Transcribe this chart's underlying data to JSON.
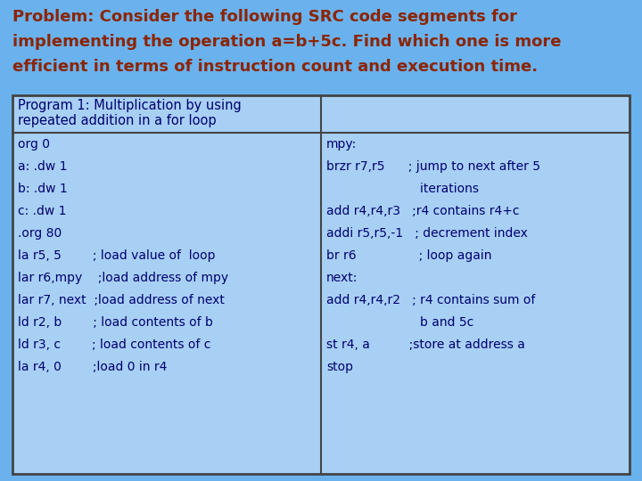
{
  "title_lines": [
    "Problem: Consider the following SRC code segments for",
    "implementing the operation a=b+5c. Find which one is more",
    "efficient in terms of instruction count and execution time."
  ],
  "title_color": "#8B2500",
  "title_bg": "#6AB2EE",
  "table_bg": "#A8D0F5",
  "table_border": "#444444",
  "header_text_line1": "Program 1: Multiplication by using",
  "header_text_line2": "repeated addition in a for loop",
  "header_text_color": "#000070",
  "left_col_lines": [
    "org 0",
    "a: .dw 1",
    "b: .dw 1",
    "c: .dw 1",
    ".org 80",
    "la r5, 5        ; load value of  loop",
    "lar r6,mpy    ;load address of mpy",
    "lar r7, next  ;load address of next",
    "ld r2, b        ; load contents of b",
    "ld r3, c        ; load contents of c",
    "la r4, 0        ;load 0 in r4"
  ],
  "right_col_lines": [
    "mpy:",
    "brzr r7,r5      ; jump to next after 5",
    "                        iterations",
    "add r4,r4,r3   ;r4 contains r4+c",
    "addi r5,r5,-1   ; decrement index",
    "br r6                ; loop again",
    "next:",
    "add r4,r4,r2   ; r4 contains sum of",
    "                        b and 5c",
    "st r4, a          ;store at address a",
    "stop"
  ],
  "code_text_color": "#000070",
  "font_size_title": 13.0,
  "font_size_header": 10.5,
  "font_size_code": 10.0
}
